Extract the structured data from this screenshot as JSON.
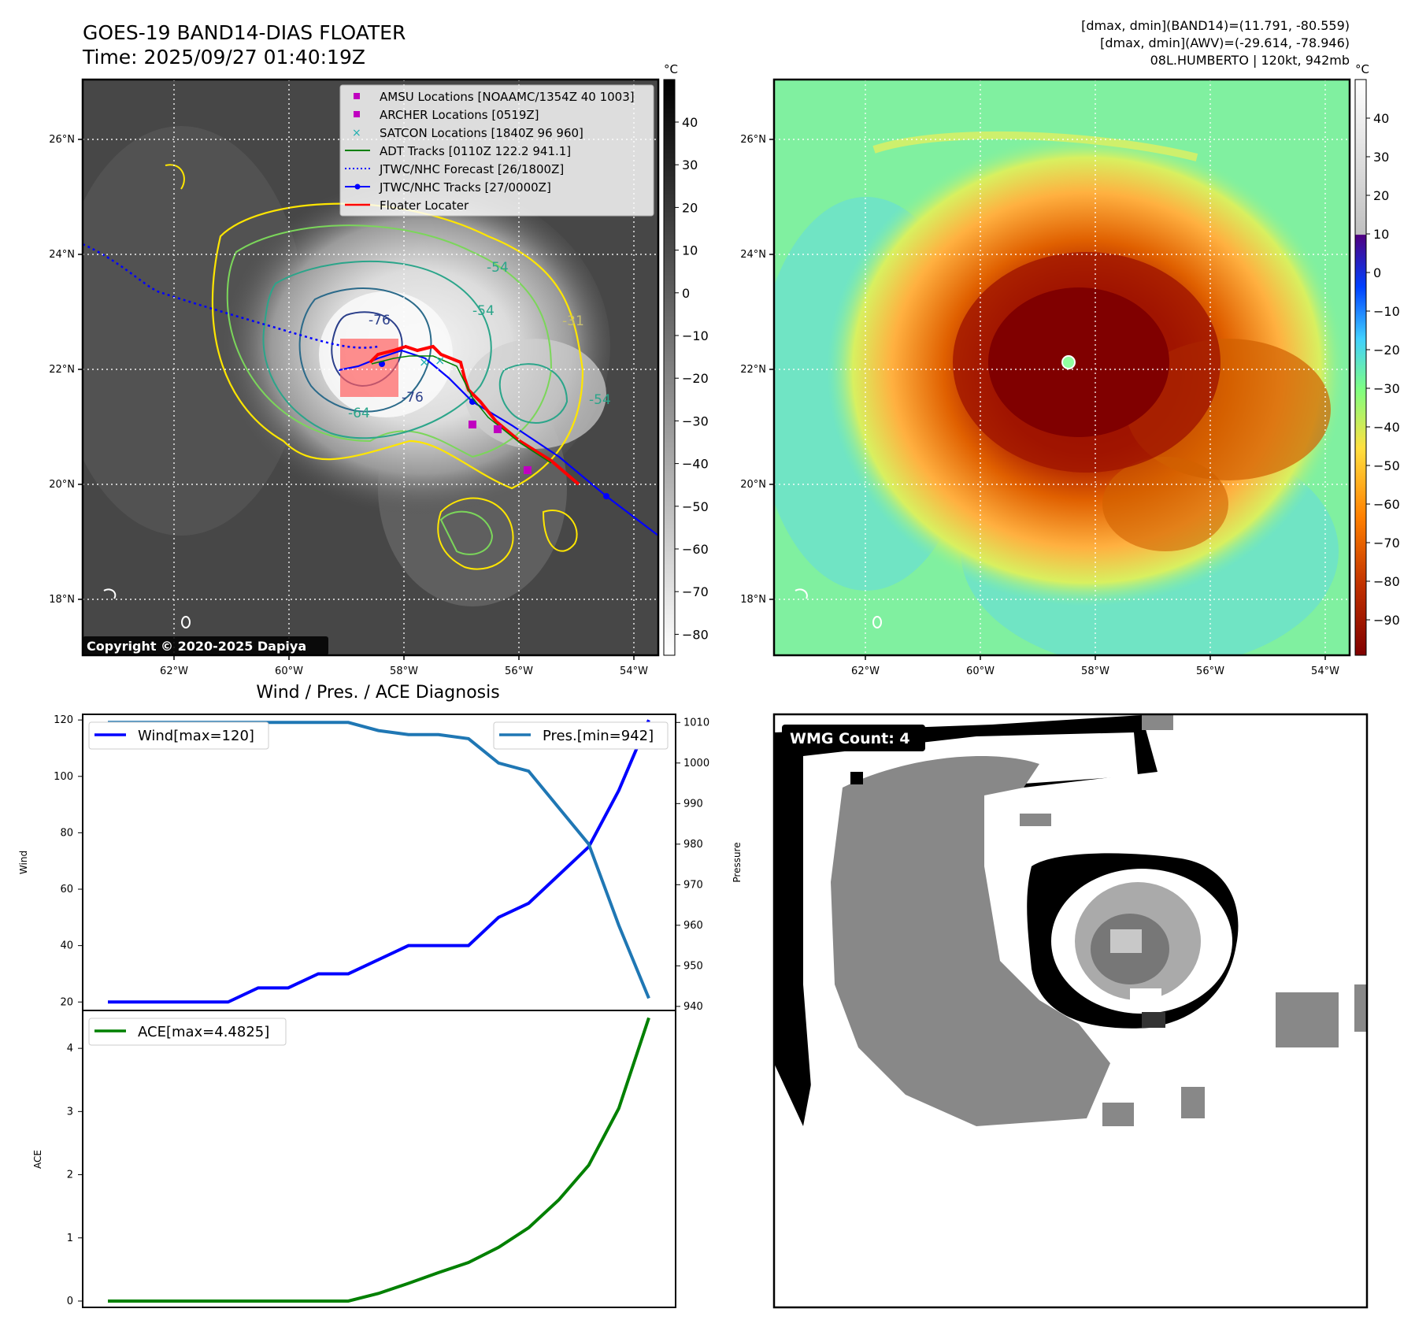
{
  "header": {
    "title_line1": "GOES-19 BAND14-DIAS FLOATER",
    "title_line2": "Time: 2025/09/27 01:40:19Z",
    "info_line1": "[dmax, dmin](BAND14)=(11.791, -80.559)",
    "info_line2": "[dmax, dmin](AWV)=(-29.614, -78.946)",
    "info_line3": "08L.HUMBERTO | 120kt, 942mb"
  },
  "maps": {
    "lon_ticks": [
      "62°W",
      "60°W",
      "58°W",
      "56°W",
      "54°W"
    ],
    "lat_ticks": [
      "26°N",
      "24°N",
      "22°N",
      "20°N",
      "18°N"
    ],
    "copyright": "Copyright © 2020-2025 Dapiya",
    "legend": [
      {
        "label": "AMSU Locations [NOAAMC/1354Z 40 1003]",
        "color": "#c000c0",
        "style": "square"
      },
      {
        "label": "ARCHER Locations [0519Z]",
        "color": "#c000c0",
        "style": "square"
      },
      {
        "label": "SATCON Locations [1840Z 96 960]",
        "color": "#20b0b0",
        "style": "cross"
      },
      {
        "label": "ADT Tracks [0110Z 122.2 941.1]",
        "color": "#008000",
        "style": "line"
      },
      {
        "label": "JTWC/NHC Forecast [26/1800Z]",
        "color": "#0000ff",
        "style": "dotted"
      },
      {
        "label": "JTWC/NHC Tracks [27/0000Z]",
        "color": "#0000ff",
        "style": "line-marker"
      },
      {
        "label": "Floater Locater",
        "color": "#ff0000",
        "style": "line"
      }
    ],
    "contour_labels": [
      "-76",
      "-76",
      "-54",
      "-54",
      "-54",
      "-64",
      "-31"
    ],
    "gray_colorbar": {
      "unit": "°C",
      "ticks": [
        "40",
        "30",
        "20",
        "10",
        "0",
        "−10",
        "−20",
        "−30",
        "−40",
        "−50",
        "−60",
        "−70",
        "−80"
      ]
    },
    "color_colorbar": {
      "unit": "°C",
      "ticks": [
        "40",
        "30",
        "20",
        "10",
        "0",
        "−10",
        "−20",
        "−30",
        "−40",
        "−50",
        "−60",
        "−70",
        "−80",
        "−90"
      ]
    }
  },
  "wmg": {
    "label": "WMG Count: 4"
  },
  "chart_data": [
    {
      "type": "line",
      "title": "Wind / Pres. / ACE Diagnosis",
      "ylabel": "Wind",
      "y2label": "Pressure",
      "ylim": [
        17,
        122
      ],
      "y2lim": [
        939,
        1012
      ],
      "yticks": [
        20,
        40,
        60,
        80,
        100,
        120
      ],
      "y2ticks": [
        940,
        950,
        960,
        970,
        980,
        990,
        1000,
        1010
      ],
      "series": [
        {
          "name": "Wind[max=120]",
          "color": "#0000ff",
          "axis": "left",
          "values": [
            20,
            20,
            20,
            20,
            20,
            25,
            25,
            30,
            30,
            35,
            40,
            40,
            40,
            50,
            55,
            65,
            75,
            95,
            120
          ]
        },
        {
          "name": "Pres.[min=942]",
          "color": "#1f77b4",
          "axis": "right",
          "values": [
            1010,
            1010,
            1010,
            1010,
            1010,
            1010,
            1010,
            1010,
            1010,
            1008,
            1007,
            1007,
            1006,
            1000,
            998,
            989,
            980,
            960,
            942
          ]
        }
      ]
    },
    {
      "type": "line",
      "ylabel": "ACE",
      "ylim": [
        -0.1,
        4.6
      ],
      "yticks": [
        0,
        1,
        2,
        3,
        4
      ],
      "series": [
        {
          "name": "ACE[max=4.4825]",
          "color": "#008000",
          "values": [
            0,
            0,
            0,
            0,
            0,
            0,
            0,
            0,
            0,
            0.12,
            0.28,
            0.45,
            0.61,
            0.85,
            1.16,
            1.6,
            2.15,
            3.05,
            4.4825
          ]
        }
      ]
    }
  ]
}
